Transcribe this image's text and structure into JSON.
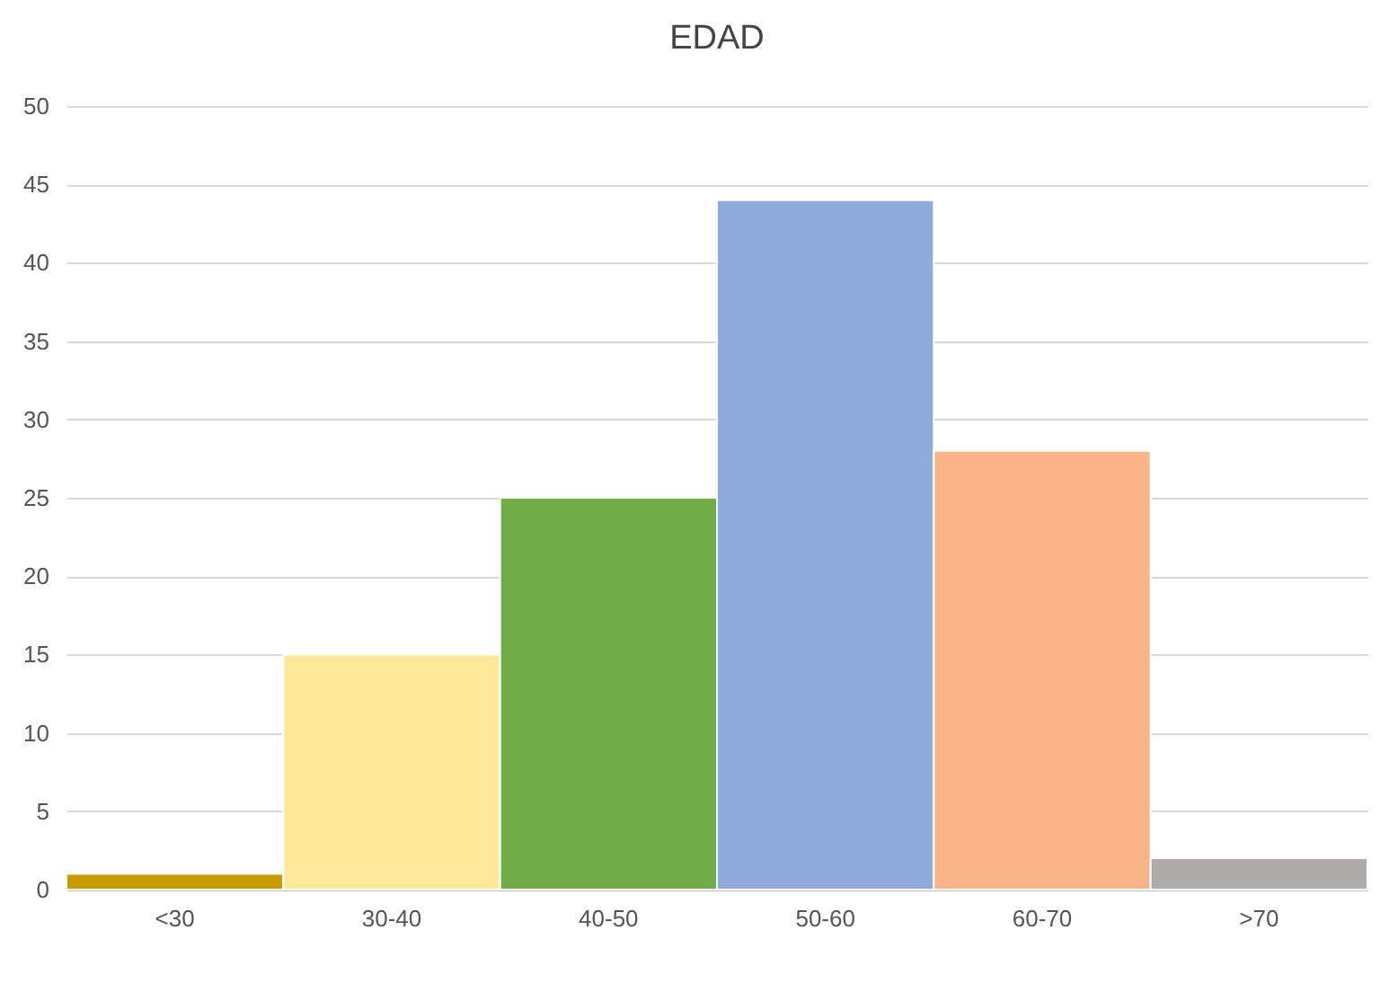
{
  "chart_data": {
    "type": "bar",
    "title": "EDAD",
    "categories": [
      "<30",
      "30-40",
      "40-50",
      "50-60",
      "60-70",
      ">70"
    ],
    "values": [
      1,
      15,
      25,
      44,
      28,
      2
    ],
    "colors": [
      "#c89a00",
      "#ffe999",
      "#70ad47",
      "#8faadc",
      "#f8b486",
      "#afabab"
    ],
    "ylim": [
      0,
      50
    ],
    "yticks": [
      0,
      5,
      10,
      15,
      20,
      25,
      30,
      35,
      40,
      45,
      50
    ],
    "grid": "y"
  }
}
